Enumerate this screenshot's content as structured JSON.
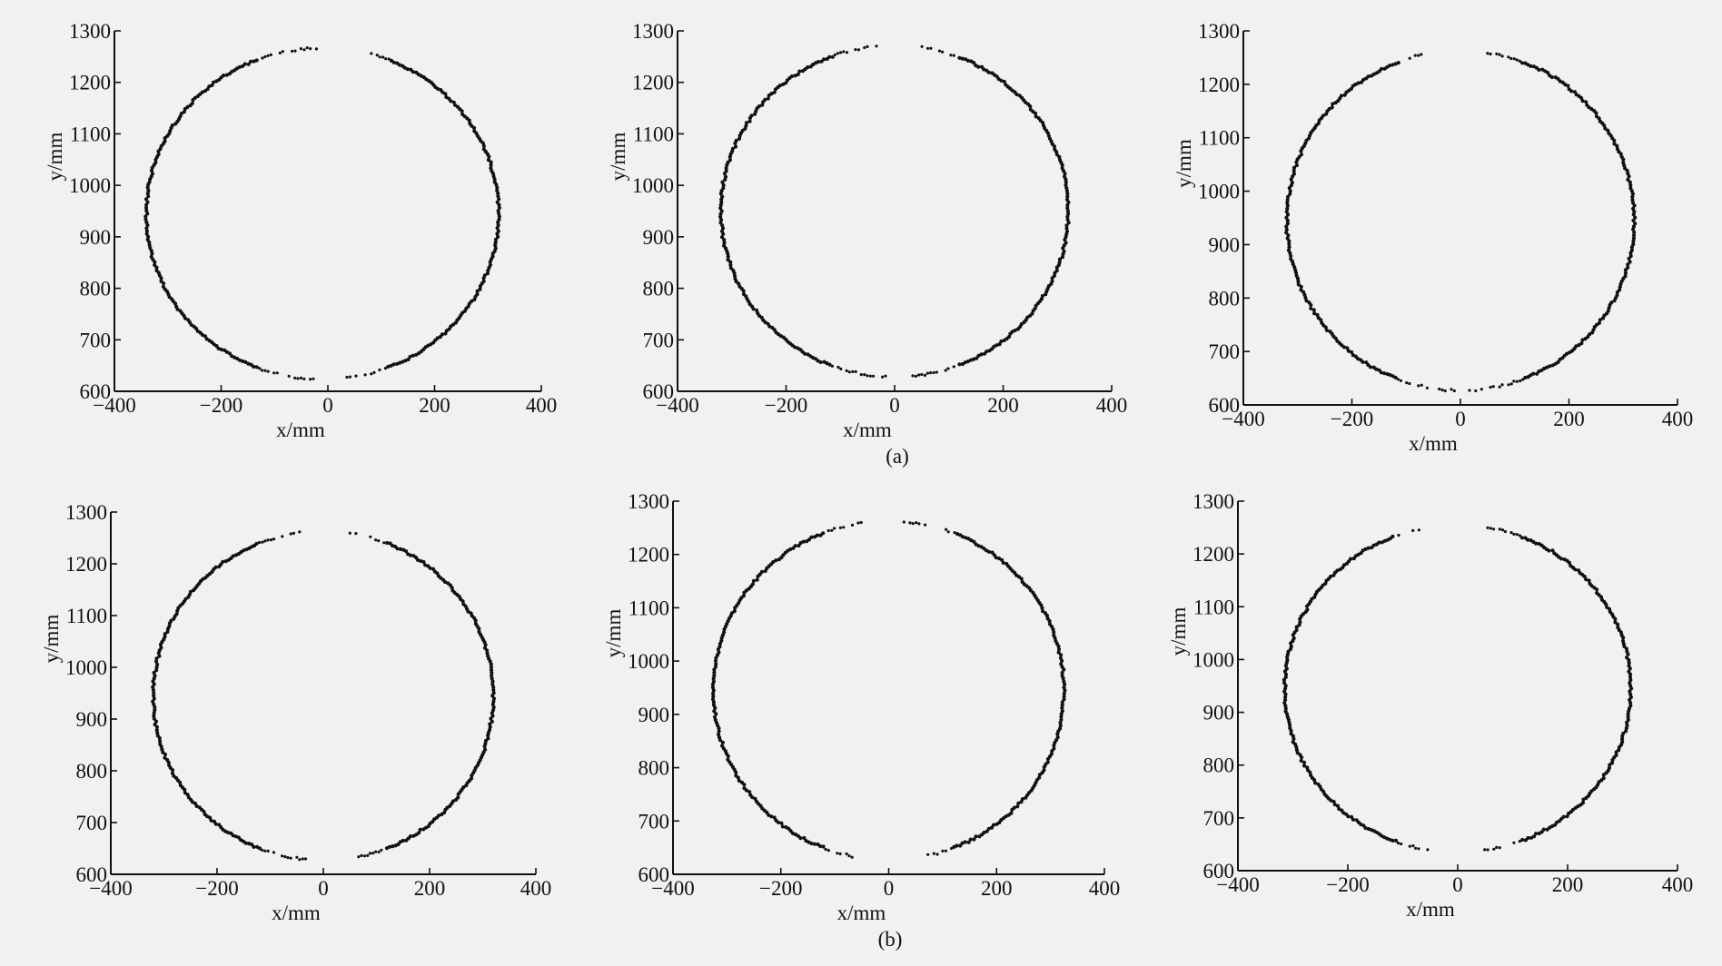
{
  "captions": {
    "a": "(a)",
    "b": "(b)"
  },
  "chart_data": [
    {
      "type": "scatter",
      "group": "(a)",
      "title": "",
      "xlabel": "x/mm",
      "ylabel": "y/mm",
      "xlim": [
        -400,
        400
      ],
      "ylim": [
        600,
        1300
      ],
      "xticks": [
        -400,
        -200,
        0,
        200,
        400
      ],
      "yticks": [
        600,
        700,
        800,
        900,
        1000,
        1100,
        1200,
        1300
      ],
      "grid": false,
      "series": [
        {
          "shape": "circle",
          "center": [
            -10,
            945
          ],
          "rx": 330,
          "ry": 322,
          "gap_top": [
            -10,
            80
          ],
          "gap_bottom": [
            -25,
            30
          ],
          "points": 360
        }
      ]
    },
    {
      "type": "scatter",
      "group": "(a)",
      "title": "",
      "xlabel": "x/mm",
      "ylabel": "y/mm",
      "xlim": [
        -400,
        400
      ],
      "ylim": [
        600,
        1300
      ],
      "xticks": [
        -400,
        -200,
        0,
        200,
        400
      ],
      "yticks": [
        600,
        700,
        800,
        900,
        1000,
        1100,
        1200,
        1300
      ],
      "grid": false,
      "series": [
        {
          "shape": "circle",
          "center": [
            0,
            950
          ],
          "rx": 320,
          "ry": 322,
          "gap_top": [
            -30,
            45
          ],
          "gap_bottom": [
            -10,
            25
          ],
          "points": 360
        }
      ]
    },
    {
      "type": "scatter",
      "group": "(a)",
      "title": "",
      "xlabel": "x/mm",
      "ylabel": "y/mm",
      "xlim": [
        -400,
        400
      ],
      "ylim": [
        600,
        1300
      ],
      "xticks": [
        -400,
        -200,
        0,
        200,
        400
      ],
      "yticks": [
        600,
        700,
        800,
        900,
        1000,
        1100,
        1200,
        1300
      ],
      "grid": false,
      "series": [
        {
          "shape": "circle",
          "center": [
            0,
            945
          ],
          "rx": 320,
          "ry": 318,
          "gap_top": [
            -70,
            45
          ],
          "gap_bottom": [
            -5,
            5
          ],
          "points": 360
        }
      ]
    },
    {
      "type": "scatter",
      "group": "(b)",
      "title": "",
      "xlabel": "x/mm",
      "ylabel": "y/mm",
      "xlim": [
        -400,
        400
      ],
      "ylim": [
        600,
        1300
      ],
      "xticks": [
        -400,
        -200,
        0,
        200,
        400
      ],
      "yticks": [
        600,
        700,
        800,
        900,
        1000,
        1100,
        1200,
        1300
      ],
      "grid": false,
      "series": [
        {
          "shape": "circle",
          "center": [
            0,
            945
          ],
          "rx": 320,
          "ry": 318,
          "gap_top": [
            -40,
            50
          ],
          "gap_bottom": [
            -30,
            60
          ],
          "points": 360
        }
      ]
    },
    {
      "type": "scatter",
      "group": "(b)",
      "title": "",
      "xlabel": "x/mm",
      "ylabel": "y/mm",
      "xlim": [
        -400,
        400
      ],
      "ylim": [
        600,
        1300
      ],
      "xticks": [
        -400,
        -200,
        0,
        200,
        400
      ],
      "yticks": [
        600,
        700,
        800,
        900,
        1000,
        1100,
        1200,
        1300
      ],
      "grid": false,
      "series": [
        {
          "shape": "circle",
          "center": [
            0,
            945
          ],
          "rx": 325,
          "ry": 318,
          "gap_top": [
            -50,
            25
          ],
          "gap_bottom": [
            -60,
            70
          ],
          "points": 360
        }
      ]
    },
    {
      "type": "scatter",
      "group": "(b)",
      "title": "",
      "xlabel": "x/mm",
      "ylabel": "y/mm",
      "xlim": [
        -400,
        400
      ],
      "ylim": [
        600,
        1300
      ],
      "xticks": [
        -400,
        -200,
        0,
        200,
        400
      ],
      "yticks": [
        600,
        700,
        800,
        900,
        1000,
        1100,
        1200,
        1300
      ],
      "grid": false,
      "series": [
        {
          "shape": "circle",
          "center": [
            0,
            945
          ],
          "rx": 315,
          "ry": 310,
          "gap_top": [
            -70,
            45
          ],
          "gap_bottom": [
            -50,
            45
          ],
          "points": 360
        }
      ]
    }
  ]
}
